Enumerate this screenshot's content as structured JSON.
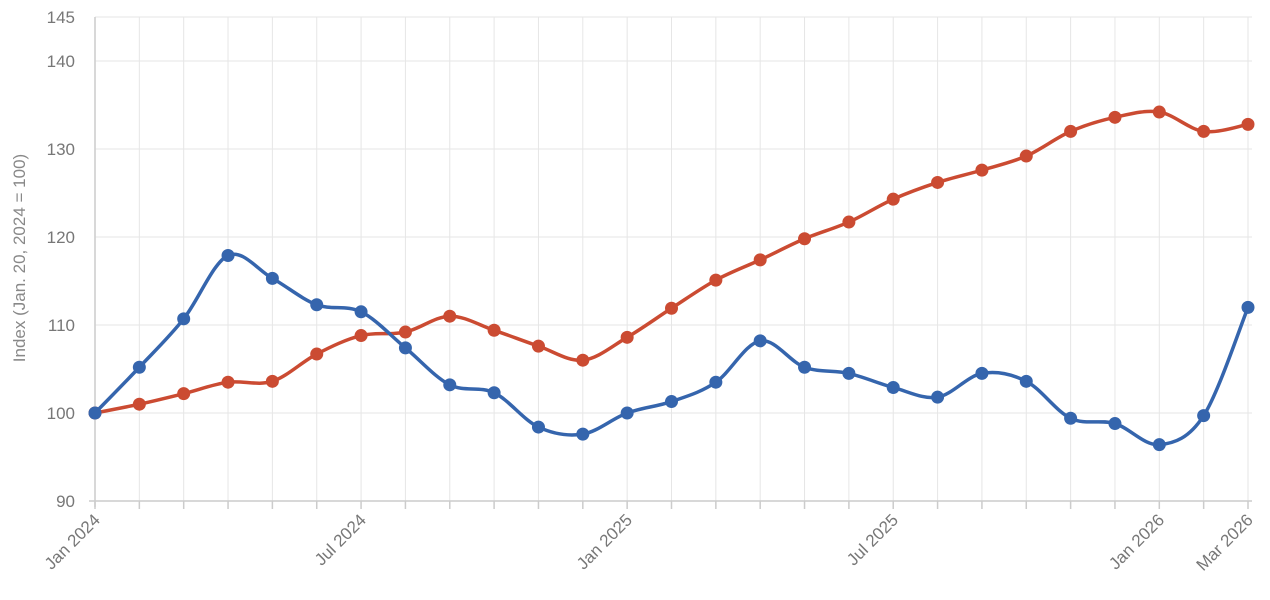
{
  "chart_data": {
    "type": "line",
    "title": "",
    "xlabel": "",
    "ylabel": "Index (Jan. 20, 2024 = 100)",
    "ylim": [
      90,
      145
    ],
    "y_ticks": [
      90,
      100,
      110,
      120,
      130,
      140,
      145
    ],
    "x_tick_labels": [
      {
        "index": 0,
        "label": "Jan 2024"
      },
      {
        "index": 6,
        "label": "Jul 2024"
      },
      {
        "index": 12,
        "label": "Jan 2025"
      },
      {
        "index": 18,
        "label": "Jul 2025"
      },
      {
        "index": 24,
        "label": "Jan 2026"
      },
      {
        "index": 26,
        "label": "Mar 2026"
      }
    ],
    "grid": true,
    "legend": "none",
    "series": [
      {
        "color": "#cb4b32",
        "values": [
          100,
          101,
          102.2,
          103.5,
          103.6,
          106.7,
          108.8,
          109.2,
          111,
          109.4,
          107.6,
          106,
          108.6,
          111.9,
          115.1,
          117.4,
          119.8,
          121.7,
          124.3,
          126.2,
          127.6,
          129.2,
          132,
          133.6,
          134.2,
          132,
          132.8
        ]
      },
      {
        "color": "#3565ad",
        "values": [
          100,
          105.2,
          110.7,
          117.9,
          115.3,
          112.3,
          111.5,
          107.4,
          103.2,
          102.3,
          98.4,
          97.6,
          100,
          101.3,
          103.5,
          108.2,
          105.2,
          104.5,
          102.9,
          101.8,
          104.5,
          103.6,
          99.4,
          98.8,
          96.4,
          99.7,
          112
        ]
      }
    ]
  }
}
